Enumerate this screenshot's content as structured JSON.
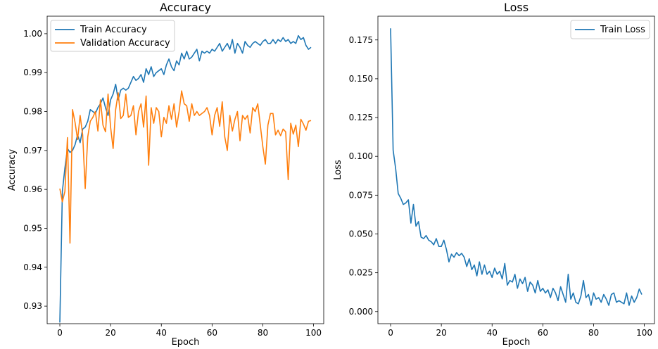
{
  "colors": {
    "train": "#1f77b4",
    "validation": "#ff7f0e"
  },
  "chart_data": [
    {
      "type": "line",
      "title": "Accuracy",
      "xlabel": "Epoch",
      "ylabel": "Accuracy",
      "xlim": [
        -5,
        104
      ],
      "ylim": [
        0.9255,
        1.0045
      ],
      "xticks": [
        0,
        20,
        40,
        60,
        80,
        100
      ],
      "yticks": [
        0.93,
        0.94,
        0.95,
        0.96,
        0.97,
        0.98,
        0.99,
        1.0
      ],
      "ytick_labels": [
        "0.93",
        "0.94",
        "0.95",
        "0.96",
        "0.97",
        "0.98",
        "0.99",
        "1.00"
      ],
      "legend": "upper-left",
      "series": [
        {
          "name": "Train Accuracy",
          "color": "#1f77b4",
          "x": [
            0,
            1,
            2,
            3,
            4,
            5,
            6,
            7,
            8,
            9,
            10,
            11,
            12,
            13,
            14,
            15,
            16,
            17,
            18,
            19,
            20,
            21,
            22,
            23,
            24,
            25,
            26,
            27,
            28,
            29,
            30,
            31,
            32,
            33,
            34,
            35,
            36,
            37,
            38,
            39,
            40,
            41,
            42,
            43,
            44,
            45,
            46,
            47,
            48,
            49,
            50,
            51,
            52,
            53,
            54,
            55,
            56,
            57,
            58,
            59,
            60,
            61,
            62,
            63,
            64,
            65,
            66,
            67,
            68,
            69,
            70,
            71,
            72,
            73,
            74,
            75,
            76,
            77,
            78,
            79,
            80,
            81,
            82,
            83,
            84,
            85,
            86,
            87,
            88,
            89,
            90,
            91,
            92,
            93,
            94,
            95,
            96,
            97,
            98,
            99
          ],
          "values": [
            0.9258,
            0.9595,
            0.9655,
            0.9705,
            0.9695,
            0.97,
            0.9715,
            0.974,
            0.972,
            0.9755,
            0.976,
            0.9775,
            0.9805,
            0.98,
            0.9795,
            0.981,
            0.982,
            0.9835,
            0.981,
            0.979,
            0.983,
            0.9845,
            0.987,
            0.983,
            0.9855,
            0.986,
            0.9855,
            0.986,
            0.9875,
            0.989,
            0.988,
            0.9885,
            0.9895,
            0.9875,
            0.991,
            0.9895,
            0.9915,
            0.989,
            0.99,
            0.9905,
            0.991,
            0.9895,
            0.992,
            0.9935,
            0.9915,
            0.9905,
            0.993,
            0.992,
            0.995,
            0.9935,
            0.9955,
            0.9935,
            0.994,
            0.995,
            0.996,
            0.993,
            0.9955,
            0.995,
            0.9955,
            0.995,
            0.996,
            0.9955,
            0.9965,
            0.9975,
            0.9955,
            0.9965,
            0.9975,
            0.996,
            0.9985,
            0.995,
            0.9975,
            0.9965,
            0.995,
            0.998,
            0.997,
            0.9965,
            0.9975,
            0.998,
            0.9975,
            0.997,
            0.998,
            0.9985,
            0.9975,
            0.9975,
            0.9985,
            0.9975,
            0.9985,
            0.998,
            0.999,
            0.998,
            0.9985,
            0.9975,
            0.998,
            0.9975,
            0.9995,
            0.9985,
            0.999,
            0.997,
            0.996,
            0.9965
          ]
        },
        {
          "name": "Validation Accuracy",
          "color": "#ff7f0e",
          "x": [
            0,
            1,
            2,
            3,
            4,
            5,
            6,
            7,
            8,
            9,
            10,
            11,
            12,
            13,
            14,
            15,
            16,
            17,
            18,
            19,
            20,
            21,
            22,
            23,
            24,
            25,
            26,
            27,
            28,
            29,
            30,
            31,
            32,
            33,
            34,
            35,
            36,
            37,
            38,
            39,
            40,
            41,
            42,
            43,
            44,
            45,
            46,
            47,
            48,
            49,
            50,
            51,
            52,
            53,
            54,
            55,
            56,
            57,
            58,
            59,
            60,
            61,
            62,
            63,
            64,
            65,
            66,
            67,
            68,
            69,
            70,
            71,
            72,
            73,
            74,
            75,
            76,
            77,
            78,
            79,
            80,
            81,
            82,
            83,
            84,
            85,
            86,
            87,
            88,
            89,
            90,
            91,
            92,
            93,
            94,
            95,
            96,
            97,
            98,
            99
          ],
          "values": [
            0.9602,
            0.9568,
            0.9595,
            0.9733,
            0.9462,
            0.9805,
            0.9772,
            0.9728,
            0.979,
            0.974,
            0.9602,
            0.9735,
            0.9775,
            0.9785,
            0.98,
            0.975,
            0.983,
            0.9765,
            0.9748,
            0.9845,
            0.976,
            0.9705,
            0.9805,
            0.9848,
            0.9782,
            0.979,
            0.9845,
            0.9785,
            0.979,
            0.9815,
            0.974,
            0.98,
            0.982,
            0.976,
            0.984,
            0.9662,
            0.981,
            0.977,
            0.981,
            0.98,
            0.9735,
            0.9785,
            0.977,
            0.9815,
            0.978,
            0.982,
            0.976,
            0.98,
            0.9853,
            0.982,
            0.9815,
            0.9775,
            0.982,
            0.979,
            0.98,
            0.979,
            0.9795,
            0.98,
            0.981,
            0.979,
            0.974,
            0.979,
            0.981,
            0.9762,
            0.9825,
            0.9735,
            0.97,
            0.979,
            0.975,
            0.978,
            0.98,
            0.9725,
            0.979,
            0.978,
            0.979,
            0.9745,
            0.981,
            0.98,
            0.982,
            0.9765,
            0.971,
            0.9665,
            0.9765,
            0.9795,
            0.9795,
            0.974,
            0.9752,
            0.9738,
            0.9755,
            0.9748,
            0.9625,
            0.977,
            0.9742,
            0.9765,
            0.971,
            0.978,
            0.9768,
            0.9752,
            0.9775,
            0.9777
          ]
        }
      ]
    },
    {
      "type": "line",
      "title": "Loss",
      "xlabel": "Epoch",
      "ylabel": "Loss",
      "xlim": [
        -5,
        104
      ],
      "ylim": [
        -0.0078,
        0.1903
      ],
      "xticks": [
        0,
        20,
        40,
        60,
        80,
        100
      ],
      "yticks": [
        0.0,
        0.025,
        0.05,
        0.075,
        0.1,
        0.125,
        0.15,
        0.175
      ],
      "ytick_labels": [
        "0.000",
        "0.025",
        "0.050",
        "0.075",
        "0.100",
        "0.125",
        "0.150",
        "0.175"
      ],
      "legend": "upper-right",
      "series": [
        {
          "name": "Train Loss",
          "color": "#1f77b4",
          "x": [
            0,
            1,
            2,
            3,
            4,
            5,
            6,
            7,
            8,
            9,
            10,
            11,
            12,
            13,
            14,
            15,
            16,
            17,
            18,
            19,
            20,
            21,
            22,
            23,
            24,
            25,
            26,
            27,
            28,
            29,
            30,
            31,
            32,
            33,
            34,
            35,
            36,
            37,
            38,
            39,
            40,
            41,
            42,
            43,
            44,
            45,
            46,
            47,
            48,
            49,
            50,
            51,
            52,
            53,
            54,
            55,
            56,
            57,
            58,
            59,
            60,
            61,
            62,
            63,
            64,
            65,
            66,
            67,
            68,
            69,
            70,
            71,
            72,
            73,
            74,
            75,
            76,
            77,
            78,
            79,
            80,
            81,
            82,
            83,
            84,
            85,
            86,
            87,
            88,
            89,
            90,
            91,
            92,
            93,
            94,
            95,
            96,
            97,
            98,
            99
          ],
          "values": [
            0.1825,
            0.104,
            0.092,
            0.076,
            0.073,
            0.069,
            0.07,
            0.072,
            0.057,
            0.069,
            0.055,
            0.058,
            0.048,
            0.047,
            0.049,
            0.046,
            0.045,
            0.043,
            0.047,
            0.042,
            0.042,
            0.046,
            0.04,
            0.032,
            0.037,
            0.035,
            0.038,
            0.036,
            0.0375,
            0.035,
            0.029,
            0.034,
            0.027,
            0.03,
            0.023,
            0.032,
            0.024,
            0.03,
            0.024,
            0.026,
            0.022,
            0.028,
            0.024,
            0.026,
            0.021,
            0.031,
            0.017,
            0.02,
            0.019,
            0.024,
            0.015,
            0.021,
            0.018,
            0.022,
            0.013,
            0.019,
            0.017,
            0.012,
            0.02,
            0.013,
            0.015,
            0.012,
            0.014,
            0.009,
            0.015,
            0.012,
            0.007,
            0.016,
            0.011,
            0.006,
            0.024,
            0.008,
            0.012,
            0.006,
            0.005,
            0.01,
            0.02,
            0.009,
            0.011,
            0.004,
            0.012,
            0.008,
            0.009,
            0.006,
            0.011,
            0.008,
            0.004,
            0.011,
            0.012,
            0.006,
            0.007,
            0.006,
            0.005,
            0.012,
            0.004,
            0.01,
            0.006,
            0.009,
            0.0145,
            0.011
          ]
        }
      ]
    }
  ]
}
